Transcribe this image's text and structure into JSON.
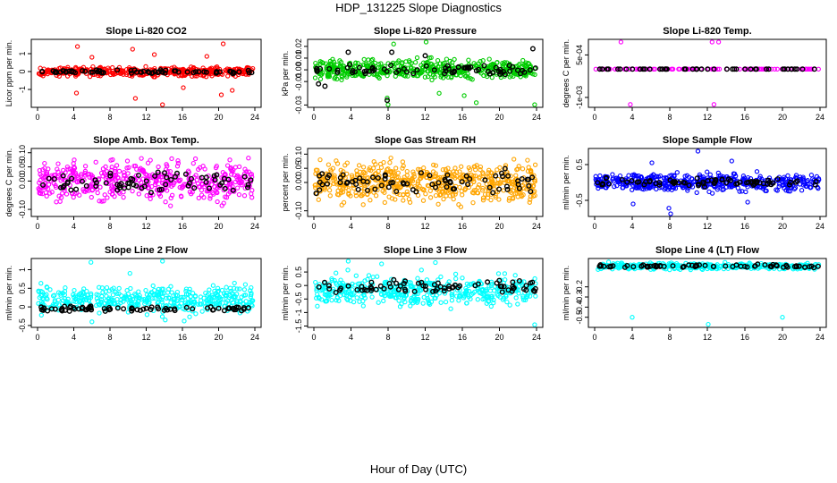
{
  "figure": {
    "title": "HDP_131225  Slope Diagnostics",
    "xlabel": "Hour of Day (UTC)"
  },
  "chart_data": [
    {
      "type": "scatter",
      "title": "Slope Li-820 CO2",
      "xlabel": "",
      "ylabel": "Licor ppm per min.",
      "xlim": [
        0,
        24
      ],
      "ylim": [
        -2,
        1.8
      ],
      "xticks": [
        "0",
        "4",
        "8",
        "12",
        "16",
        "20",
        "24"
      ],
      "yticks": [
        {
          "v": -1,
          "label": "-1"
        },
        {
          "v": 0,
          "label": "0"
        },
        {
          "v": 1,
          "label": "1"
        }
      ],
      "grid": false,
      "series": [
        {
          "color": "#ff0000",
          "band": [
            -0.35,
            0.35
          ],
          "n": 440,
          "points": [
            [
              4.4,
              1.4
            ],
            [
              4.3,
              -1.2
            ],
            [
              10.5,
              1.25
            ],
            [
              10.8,
              -1.5
            ],
            [
              12.9,
              0.95
            ],
            [
              13.8,
              -2.0
            ],
            [
              20.5,
              1.55
            ],
            [
              20.3,
              -1.3
            ],
            [
              21.5,
              -1.05
            ],
            [
              6.0,
              0.8
            ],
            [
              16.1,
              -0.9
            ],
            [
              18.7,
              0.85
            ]
          ]
        },
        {
          "color": "#000000",
          "band": [
            -0.15,
            0.12
          ],
          "n": 70,
          "points": []
        }
      ]
    },
    {
      "type": "scatter",
      "title": "Slope Li-820 Pressure",
      "xlabel": "",
      "ylabel": "kPa per min.",
      "xlim": [
        0,
        24
      ],
      "ylim": [
        -0.032,
        0.026
      ],
      "xticks": [
        "0",
        "4",
        "8",
        "12",
        "16",
        "20",
        "24"
      ],
      "yticks": [
        {
          "v": -0.03,
          "label": "-0.03"
        },
        {
          "v": -0.01,
          "label": "-0.01"
        },
        {
          "v": 0.0,
          "label": "0.00"
        },
        {
          "v": 0.01,
          "label": "0.01"
        },
        {
          "v": 0.02,
          "label": "0.02"
        }
      ],
      "grid": false,
      "series": [
        {
          "color": "#00cc00",
          "band": [
            -0.012,
            0.012
          ],
          "n": 480,
          "points": [
            [
              7.9,
              -0.024
            ],
            [
              8.0,
              -0.03
            ],
            [
              23.8,
              -0.03
            ],
            [
              17.5,
              -0.028
            ],
            [
              16.2,
              -0.022
            ],
            [
              12.1,
              0.024
            ],
            [
              8.6,
              0.022
            ],
            [
              13.5,
              -0.02
            ]
          ]
        },
        {
          "color": "#000000",
          "band": [
            -0.006,
            0.006
          ],
          "n": 70,
          "points": [
            [
              7.9,
              -0.026
            ],
            [
              8.4,
              0.015
            ],
            [
              12.0,
              0.012
            ],
            [
              23.6,
              0.018
            ],
            [
              3.7,
              0.015
            ],
            [
              0.5,
              -0.012
            ],
            [
              1.2,
              -0.014
            ]
          ]
        }
      ]
    },
    {
      "type": "scatter",
      "title": "Slope Li-820 Temp.",
      "xlabel": "",
      "ylabel": "degrees C per min.",
      "xlim": [
        0,
        24
      ],
      "ylim": [
        -0.00135,
        0.00105
      ],
      "xticks": [
        "0",
        "4",
        "8",
        "12",
        "16",
        "20",
        "24"
      ],
      "yticks": [
        {
          "v": -0.001,
          "label": "-1e-03"
        },
        {
          "v": 0.0005,
          "label": "5e-04"
        }
      ],
      "grid": false,
      "series": [
        {
          "color": "#ff00ff",
          "band": [
            0,
            0
          ],
          "n": 110,
          "points": [
            [
              2.8,
              0.001
            ],
            [
              12.5,
              0.001
            ],
            [
              13.2,
              0.001
            ],
            [
              3.8,
              -0.00125
            ],
            [
              12.7,
              -0.00125
            ]
          ]
        },
        {
          "color": "#000000",
          "band": [
            0,
            0
          ],
          "n": 45,
          "points": []
        }
      ]
    },
    {
      "type": "scatter",
      "title": "Slope Amb. Box Temp.",
      "xlabel": "",
      "ylabel": "degrees C per min.",
      "xlim": [
        0,
        24
      ],
      "ylim": [
        -0.125,
        0.115
      ],
      "xticks": [
        "0",
        "4",
        "8",
        "12",
        "16",
        "20",
        "24"
      ],
      "yticks": [
        {
          "v": -0.1,
          "label": "-0.10"
        },
        {
          "v": 0.0,
          "label": "0.00"
        },
        {
          "v": 0.05,
          "label": "0.05"
        },
        {
          "v": 0.1,
          "label": "0.10"
        }
      ],
      "grid": false,
      "series": [
        {
          "color": "#ff00ff",
          "band": [
            -0.1,
            0.1
          ],
          "n": 480,
          "points": []
        },
        {
          "color": "#000000",
          "band": [
            -0.06,
            0.06
          ],
          "n": 70,
          "points": []
        }
      ]
    },
    {
      "type": "scatter",
      "title": "Slope Gas Stream RH",
      "xlabel": "",
      "ylabel": "percent per min.",
      "xlim": [
        0,
        24
      ],
      "ylim": [
        -0.12,
        0.12
      ],
      "xticks": [
        "0",
        "4",
        "8",
        "12",
        "16",
        "20",
        "24"
      ],
      "yticks": [
        {
          "v": -0.1,
          "label": "-0.10"
        },
        {
          "v": 0.0,
          "label": "0.00"
        },
        {
          "v": 0.05,
          "label": "0.05"
        },
        {
          "v": 0.1,
          "label": "0.10"
        }
      ],
      "grid": false,
      "series": [
        {
          "color": "#ffa500",
          "band": [
            -0.1,
            0.1
          ],
          "n": 560,
          "points": []
        },
        {
          "color": "#000000",
          "band": [
            -0.06,
            0.06
          ],
          "n": 75,
          "points": []
        }
      ]
    },
    {
      "type": "scatter",
      "title": "Slope Sample Flow",
      "xlabel": "",
      "ylabel": "ml/min per min.",
      "xlim": [
        0,
        24
      ],
      "ylim": [
        -0.95,
        0.95
      ],
      "xticks": [
        "0",
        "4",
        "8",
        "12",
        "16",
        "20",
        "24"
      ],
      "yticks": [
        {
          "v": -0.5,
          "label": "-0.5"
        },
        {
          "v": 0.5,
          "label": "0.5"
        }
      ],
      "grid": false,
      "series": [
        {
          "color": "#0000ff",
          "band": [
            -0.35,
            0.35
          ],
          "n": 480,
          "points": [
            [
              8.1,
              -0.9
            ],
            [
              11.0,
              0.9
            ],
            [
              4.1,
              -0.6
            ],
            [
              6.1,
              0.55
            ],
            [
              16.3,
              -0.55
            ],
            [
              14.6,
              0.6
            ],
            [
              7.9,
              -0.72
            ]
          ]
        },
        {
          "color": "#000000",
          "band": [
            -0.15,
            0.15
          ],
          "n": 75,
          "points": []
        }
      ]
    },
    {
      "type": "scatter",
      "title": "Slope Line 2 Flow",
      "xlabel": "",
      "ylabel": "ml/min per min.",
      "xlim": [
        0,
        24
      ],
      "ylim": [
        -0.55,
        1.3
      ],
      "xticks": [
        "0",
        "4",
        "8",
        "12",
        "16",
        "20",
        "24"
      ],
      "yticks": [
        {
          "v": -0.5,
          "label": "-0.5"
        },
        {
          "v": 0.0,
          "label": "0"
        },
        {
          "v": 0.5,
          "label": "0.5"
        },
        {
          "v": 1.0,
          "label": "1"
        }
      ],
      "grid": false,
      "series": [
        {
          "color": "#00ffff",
          "band": [
            -0.3,
            0.7
          ],
          "n": 420,
          "points": [
            [
              5.9,
              1.2
            ],
            [
              13.8,
              1.25
            ],
            [
              14.1,
              -0.35
            ],
            [
              16.2,
              -0.38
            ],
            [
              6.0,
              -0.4
            ],
            [
              10.2,
              0.9
            ]
          ]
        },
        {
          "color": "#000000",
          "band": [
            -0.15,
            0.05
          ],
          "n": 75,
          "points": []
        }
      ]
    },
    {
      "type": "scatter",
      "title": "Slope Line 3 Flow",
      "xlabel": "",
      "ylabel": "ml/min per min.",
      "xlim": [
        0,
        24
      ],
      "ylim": [
        -1.55,
        1.0
      ],
      "xticks": [
        "0",
        "4",
        "8",
        "12",
        "16",
        "20",
        "24"
      ],
      "yticks": [
        {
          "v": -1.5,
          "label": "-1.5"
        },
        {
          "v": -1.0,
          "label": "-1"
        },
        {
          "v": -0.5,
          "label": "-0.5"
        },
        {
          "v": 0.0,
          "label": "0"
        },
        {
          "v": 0.5,
          "label": "0.5"
        }
      ],
      "grid": false,
      "series": [
        {
          "color": "#00ffff",
          "band": [
            -1.0,
            0.6
          ],
          "n": 440,
          "points": [
            [
              23.8,
              -1.5
            ],
            [
              3.7,
              0.95
            ],
            [
              13.1,
              0.85
            ],
            [
              7.3,
              0.8
            ]
          ]
        },
        {
          "color": "#000000",
          "band": [
            -0.35,
            0.3
          ],
          "n": 75,
          "points": []
        }
      ]
    },
    {
      "type": "scatter",
      "title": "Slope Line 4 (LT) Flow",
      "xlabel": "",
      "ylabel": "ml/min per min.",
      "xlim": [
        0,
        24
      ],
      "ylim": [
        -0.6,
        0.08
      ],
      "xticks": [
        "0",
        "4",
        "8",
        "12",
        "16",
        "20",
        "24"
      ],
      "yticks": [
        {
          "v": -0.5,
          "label": "-0.5"
        },
        {
          "v": -0.4,
          "label": "-0.4"
        },
        {
          "v": -0.3,
          "label": "-0.3"
        },
        {
          "v": -0.2,
          "label": "-0.2"
        }
      ],
      "grid": false,
      "series": [
        {
          "color": "#00ffff",
          "band": [
            -0.04,
            0.05
          ],
          "n": 360,
          "points": [
            [
              4.0,
              -0.5
            ],
            [
              12.1,
              -0.57
            ],
            [
              20.0,
              -0.5
            ]
          ]
        },
        {
          "color": "#000000",
          "band": [
            -0.02,
            0.03
          ],
          "n": 70,
          "points": []
        }
      ]
    }
  ]
}
